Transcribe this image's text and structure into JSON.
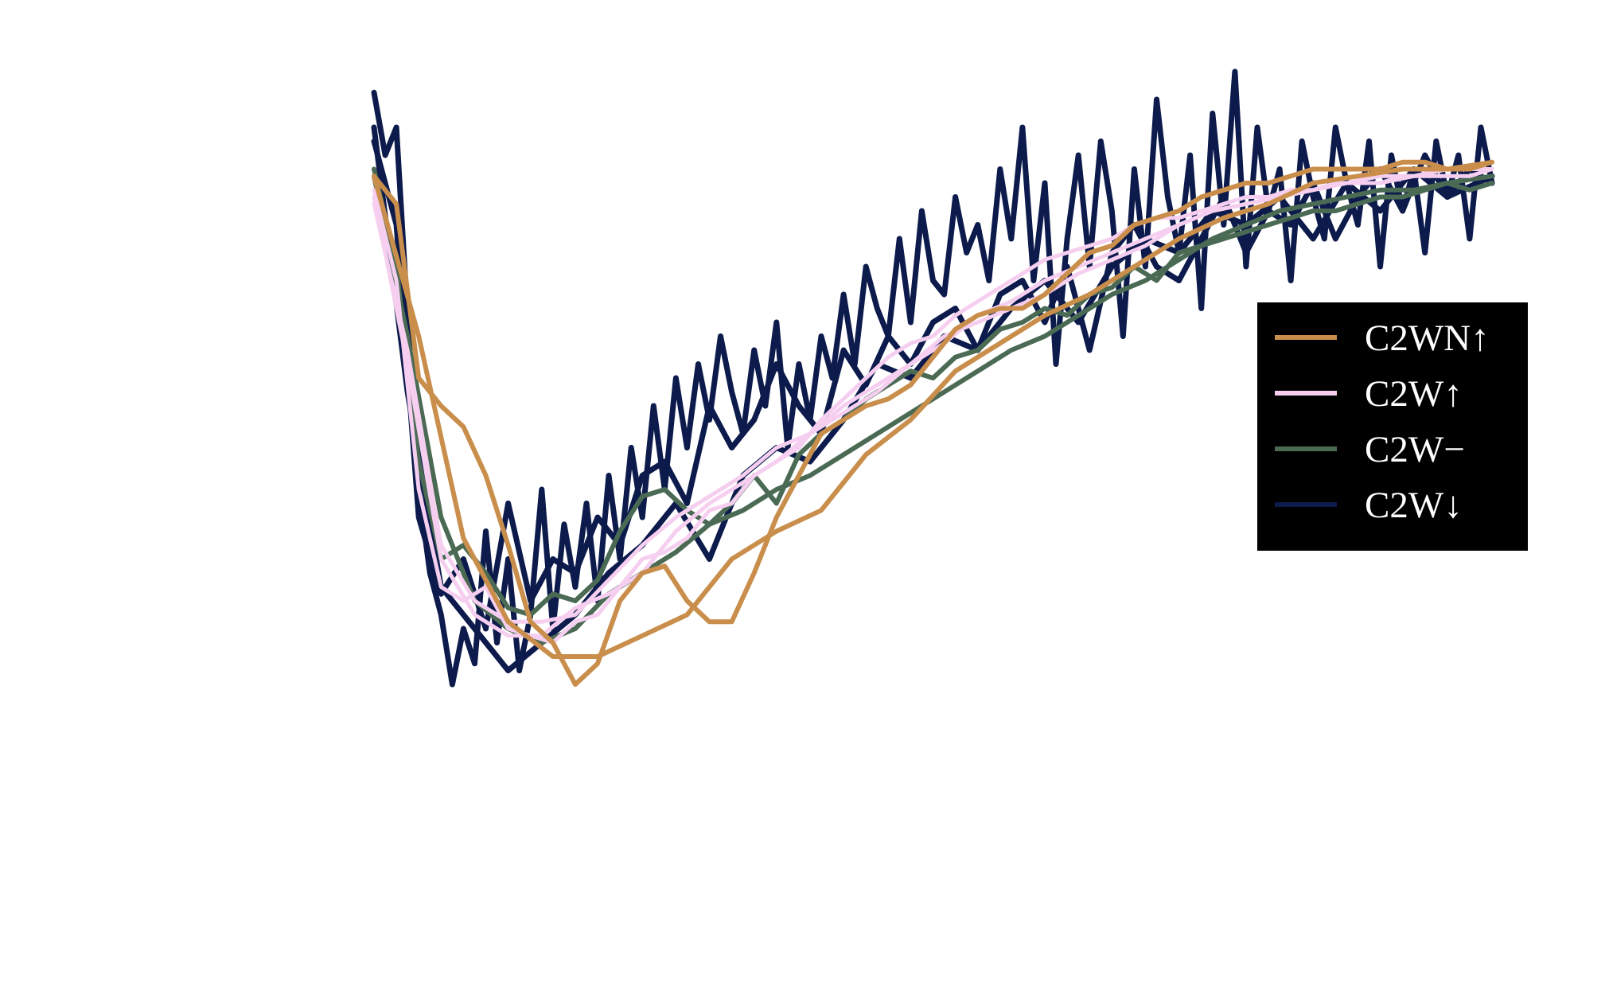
{
  "chart_data": {
    "type": "line",
    "title": "",
    "xlabel": "",
    "ylabel": "",
    "xlim": [
      0,
      100
    ],
    "ylim": [
      0,
      100
    ],
    "grid": false,
    "legend_position": "center-right",
    "background": "#ffffff",
    "legend_background": "#000000",
    "legend_text_color": "#ffffff",
    "series": [
      {
        "name": "C2WN↑",
        "color": "#c98e4b",
        "stroke": 6,
        "lines": [
          {
            "x": [
              0,
              2,
              4,
              6,
              8,
              10,
              12,
              14,
              16,
              18,
              20,
              22,
              24,
              26,
              28,
              30,
              32,
              34,
              36,
              38,
              40,
              42,
              44,
              46,
              48,
              50,
              52,
              54,
              56,
              58,
              60,
              62,
              64,
              66,
              68,
              70,
              72,
              74,
              76,
              78,
              80,
              82,
              84,
              86,
              88,
              90,
              92,
              94,
              96,
              98,
              100
            ],
            "y": [
              85,
              81,
              56,
              52,
              49,
              42,
              32,
              21,
              18,
              12,
              15,
              24,
              28,
              29,
              24,
              21,
              21,
              28,
              36,
              42,
              48,
              50,
              52,
              53,
              55,
              59,
              63,
              65,
              66,
              66,
              68,
              71,
              74,
              75,
              78,
              79,
              80,
              82,
              83,
              84,
              84,
              85,
              86,
              86,
              86,
              86,
              87,
              87,
              86,
              86,
              87
            ]
          },
          {
            "x": [
              0,
              4,
              8,
              12,
              16,
              20,
              24,
              28,
              32,
              36,
              40,
              44,
              48,
              52,
              56,
              60,
              64,
              68,
              72,
              76,
              80,
              84,
              88,
              92,
              96,
              100
            ],
            "y": [
              85,
              62,
              33,
              21,
              16,
              16,
              19,
              22,
              30,
              34,
              37,
              45,
              50,
              57,
              61,
              65,
              68,
              72,
              76,
              79,
              81,
              84,
              85,
              86,
              86,
              87
            ]
          }
        ]
      },
      {
        "name": "C2W↑",
        "color": "#f6cff0",
        "stroke": 5,
        "lines": [
          {
            "x": [
              0,
              2,
              4,
              6,
              8,
              10,
              12,
              14,
              16,
              18,
              20,
              22,
              24,
              26,
              28,
              30,
              32,
              34,
              36,
              38,
              40,
              42,
              44,
              46,
              48,
              50,
              52,
              54,
              56,
              58,
              60,
              62,
              64,
              66,
              68,
              70,
              72,
              74,
              76,
              78,
              80,
              82,
              84,
              86,
              88,
              90,
              92,
              94,
              96,
              98,
              100
            ],
            "y": [
              83,
              70,
              40,
              26,
              24,
              26,
              20,
              19,
              18,
              21,
              22,
              26,
              30,
              31,
              33,
              37,
              38,
              42,
              44,
              46,
              50,
              53,
              56,
              59,
              61,
              62,
              65,
              67,
              69,
              71,
              73,
              74,
              75,
              76,
              78,
              79,
              79,
              80,
              81,
              82,
              82,
              83,
              83,
              84,
              84,
              84,
              85,
              85,
              85,
              85,
              86
            ]
          },
          {
            "x": [
              0,
              3,
              6,
              9,
              12,
              15,
              18,
              21,
              24,
              27,
              30,
              33,
              36,
              39,
              42,
              45,
              48,
              51,
              54,
              57,
              60,
              63,
              66,
              69,
              72,
              75,
              78,
              81,
              84,
              87,
              90,
              93,
              96,
              100
            ],
            "y": [
              82,
              58,
              30,
              22,
              19,
              19,
              23,
              25,
              28,
              34,
              38,
              41,
              44,
              48,
              52,
              55,
              58,
              61,
              65,
              67,
              70,
              72,
              74,
              76,
              78,
              80,
              81,
              82,
              83,
              84,
              84,
              85,
              86,
              86
            ]
          },
          {
            "x": [
              0,
              3,
              6,
              9,
              12,
              15,
              18,
              21,
              24,
              27,
              30,
              33,
              36,
              39,
              42,
              45,
              48,
              51,
              54,
              57,
              60,
              63,
              66,
              69,
              72,
              75,
              78,
              81,
              84,
              87,
              90,
              93,
              96,
              100
            ],
            "y": [
              81,
              60,
              32,
              24,
              21,
              21,
              22,
              27,
              32,
              36,
              39,
              42,
              46,
              48,
              51,
              54,
              58,
              62,
              64,
              66,
              68,
              71,
              73,
              75,
              78,
              80,
              81,
              82,
              83,
              84,
              85,
              85,
              86,
              86
            ]
          }
        ]
      },
      {
        "name": "C2W−",
        "color": "#4a6a54",
        "stroke": 6,
        "lines": [
          {
            "x": [
              0,
              2,
              4,
              6,
              8,
              10,
              12,
              14,
              16,
              18,
              20,
              22,
              24,
              26,
              28,
              30,
              32,
              34,
              36,
              38,
              40,
              42,
              44,
              46,
              48,
              50,
              52,
              54,
              56,
              58,
              60,
              62,
              64,
              66,
              68,
              70,
              72,
              74,
              76,
              78,
              80,
              82,
              84,
              86,
              88,
              90,
              92,
              94,
              96,
              98,
              100
            ],
            "y": [
              86,
              72,
              44,
              30,
              32,
              28,
              23,
              22,
              25,
              24,
              27,
              34,
              39,
              40,
              37,
              35,
              38,
              42,
              38,
              45,
              48,
              50,
              53,
              55,
              57,
              56,
              59,
              60,
              63,
              64,
              66,
              65,
              68,
              69,
              72,
              70,
              74,
              75,
              76,
              77,
              78,
              79,
              80,
              80,
              81,
              82,
              82,
              83,
              84,
              83,
              84
            ]
          },
          {
            "x": [
              0,
              3,
              6,
              9,
              12,
              15,
              18,
              21,
              24,
              27,
              30,
              33,
              36,
              39,
              42,
              45,
              48,
              51,
              54,
              57,
              60,
              63,
              66,
              69,
              72,
              75,
              78,
              81,
              84,
              87,
              90,
              93,
              96,
              100
            ],
            "y": [
              85,
              62,
              36,
              24,
              20,
              18,
              20,
              25,
              28,
              31,
              35,
              37,
              40,
              42,
              45,
              48,
              51,
              54,
              57,
              60,
              62,
              65,
              68,
              70,
              73,
              76,
              78,
              80,
              81,
              82,
              83,
              83,
              84,
              85
            ]
          }
        ]
      },
      {
        "name": "C2W↓",
        "color": "#0c1a4c",
        "stroke": 7,
        "lines": [
          {
            "x": [
              0,
              1,
              2,
              3,
              4,
              5,
              6,
              7,
              8,
              9,
              10,
              11,
              12,
              13,
              14,
              15,
              16,
              17,
              18,
              19,
              20,
              21,
              22,
              23,
              24,
              25,
              26,
              27,
              28,
              29,
              30,
              31,
              32,
              33,
              34,
              35,
              36,
              37,
              38,
              39,
              40,
              41,
              42,
              43,
              44,
              45,
              46,
              47,
              48,
              49,
              50,
              51,
              52,
              53,
              54,
              55,
              56,
              57,
              58,
              59,
              60,
              61,
              62,
              63,
              64,
              65,
              66,
              67,
              68,
              69,
              70,
              71,
              72,
              73,
              74,
              75,
              76,
              77,
              78,
              79,
              80,
              81,
              82,
              83,
              84,
              85,
              86,
              87,
              88,
              89,
              90,
              91,
              92,
              93,
              94,
              95,
              96,
              97,
              98,
              99,
              100
            ],
            "y": [
              97,
              88,
              92,
              65,
              40,
              28,
              22,
              12,
              20,
              15,
              34,
              18,
              30,
              14,
              22,
              40,
              20,
              35,
              26,
              38,
              24,
              42,
              30,
              46,
              36,
              52,
              40,
              56,
              46,
              58,
              50,
              62,
              54,
              48,
              60,
              52,
              64,
              46,
              58,
              50,
              62,
              56,
              68,
              58,
              72,
              66,
              62,
              76,
              64,
              80,
              70,
              68,
              82,
              74,
              78,
              70,
              86,
              76,
              92,
              70,
              84,
              58,
              76,
              88,
              72,
              90,
              80,
              62,
              86,
              72,
              96,
              82,
              74,
              88,
              66,
              94,
              78,
              100,
              72,
              92,
              80,
              86,
              70,
              90,
              82,
              76,
              92,
              84,
              78,
              90,
              72,
              88,
              80,
              86,
              74,
              90,
              82,
              88,
              76,
              92,
              84
            ]
          },
          {
            "x": [
              0,
              2,
              4,
              6,
              8,
              10,
              12,
              14,
              16,
              18,
              20,
              22,
              24,
              26,
              28,
              30,
              32,
              34,
              36,
              38,
              40,
              42,
              44,
              46,
              48,
              50,
              52,
              54,
              56,
              58,
              60,
              62,
              64,
              66,
              68,
              70,
              72,
              74,
              76,
              78,
              80,
              82,
              84,
              86,
              88,
              90,
              92,
              94,
              96,
              98,
              100
            ],
            "y": [
              90,
              78,
              36,
              25,
              30,
              20,
              38,
              24,
              30,
              28,
              36,
              32,
              42,
              44,
              38,
              52,
              46,
              50,
              58,
              52,
              48,
              60,
              55,
              62,
              58,
              64,
              66,
              60,
              68,
              70,
              64,
              72,
              60,
              74,
              78,
              72,
              70,
              76,
              82,
              74,
              80,
              78,
              84,
              76,
              82,
              86,
              80,
              88,
              82,
              86,
              84
            ]
          },
          {
            "x": [
              0,
              3,
              6,
              9,
              12,
              15,
              18,
              21,
              24,
              27,
              30,
              33,
              36,
              39,
              42,
              45,
              48,
              51,
              54,
              57,
              60,
              63,
              66,
              69,
              72,
              75,
              78,
              81,
              84,
              87,
              90,
              93,
              96,
              100
            ],
            "y": [
              92,
              54,
              26,
              20,
              14,
              18,
              22,
              28,
              32,
              38,
              30,
              42,
              46,
              44,
              50,
              58,
              56,
              62,
              60,
              66,
              70,
              64,
              72,
              76,
              74,
              80,
              78,
              82,
              76,
              84,
              80,
              86,
              82,
              85
            ]
          }
        ]
      }
    ]
  }
}
